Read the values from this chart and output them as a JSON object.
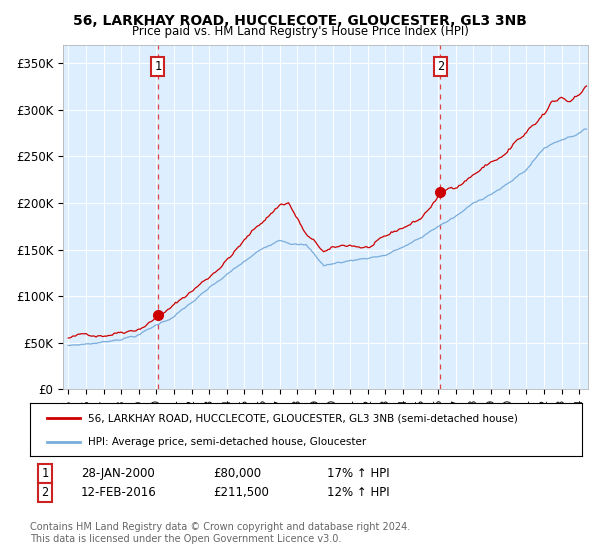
{
  "title": "56, LARKHAY ROAD, HUCCLECOTE, GLOUCESTER, GL3 3NB",
  "subtitle": "Price paid vs. HM Land Registry's House Price Index (HPI)",
  "plot_bg_color": "#ddeeff",
  "ylabel_ticks": [
    "£0",
    "£50K",
    "£100K",
    "£150K",
    "£200K",
    "£250K",
    "£300K",
    "£350K"
  ],
  "ytick_values": [
    0,
    50000,
    100000,
    150000,
    200000,
    250000,
    300000,
    350000
  ],
  "ylim": [
    0,
    370000
  ],
  "xlim_start": 1994.7,
  "xlim_end": 2024.5,
  "sale1_date": 2000.08,
  "sale1_price": 80000,
  "sale1_label": "1",
  "sale2_date": 2016.12,
  "sale2_price": 211500,
  "sale2_label": "2",
  "legend_line1": "56, LARKHAY ROAD, HUCCLECOTE, GLOUCESTER, GL3 3NB (semi-detached house)",
  "legend_line2": "HPI: Average price, semi-detached house, Gloucester",
  "footer": "Contains HM Land Registry data © Crown copyright and database right 2024.\nThis data is licensed under the Open Government Licence v3.0.",
  "line_red": "#cc0000",
  "line_blue": "#7aaddb",
  "dashed_red": "#dd4444"
}
